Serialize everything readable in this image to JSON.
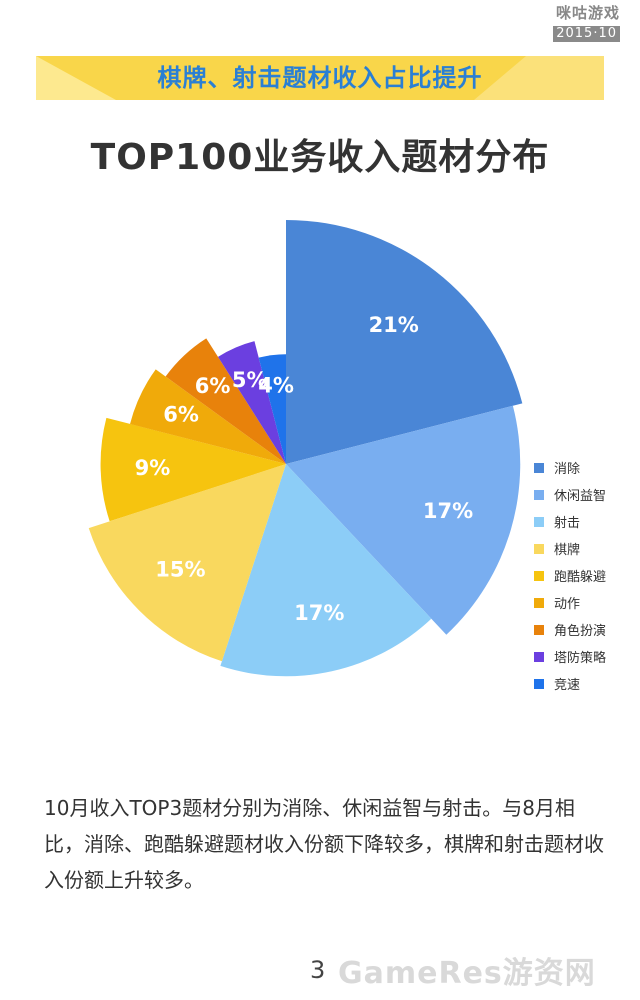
{
  "header": {
    "logo_brand": "咪咕游戏",
    "logo_date": "2015·10"
  },
  "banner": {
    "title": "棋牌、射击题材收入占比提升",
    "colors": {
      "main": "#f9d64a",
      "light": "#fde98f",
      "text": "#2a7fd4"
    }
  },
  "chart_data": {
    "type": "pie",
    "title": "TOP100业务收入题材分布",
    "start": "12 o'clock, clockwise",
    "style": "variable-radius (rose) pie",
    "slices": [
      {
        "label": "消除",
        "value": 21,
        "text": "21%",
        "color": "#4a86d6",
        "relative_radius": 1.0
      },
      {
        "label": "休闲益智",
        "value": 17,
        "text": "17%",
        "color": "#79aef0",
        "relative_radius": 0.96
      },
      {
        "label": "射击",
        "value": 17,
        "text": "17%",
        "color": "#8ccdf7",
        "relative_radius": 0.87
      },
      {
        "label": "棋牌",
        "value": 15,
        "text": "15%",
        "color": "#f9d85e",
        "relative_radius": 0.85
      },
      {
        "label": "跑酷躲避",
        "value": 9,
        "text": "9%",
        "color": "#f6c40f",
        "relative_radius": 0.76
      },
      {
        "label": "动作",
        "value": 6,
        "text": "6%",
        "color": "#f0aa0a",
        "relative_radius": 0.66
      },
      {
        "label": "角色扮演",
        "value": 6,
        "text": "6%",
        "color": "#e8820b",
        "relative_radius": 0.61
      },
      {
        "label": "塔防策略",
        "value": 5,
        "text": "5%",
        "color": "#6b3fe0",
        "relative_radius": 0.52
      },
      {
        "label": "竞速",
        "value": 4,
        "text": "4%",
        "color": "#1f73ea",
        "relative_radius": 0.45
      }
    ],
    "legend_position": "right",
    "label_color": "#ffffff"
  },
  "description": "10月收入TOP3题材分别为消除、休闲益智与射击。与8月相比，消除、跑酷躲避题材收入份额下降较多，棋牌和射击题材收入份额上升较多。",
  "footer": {
    "page_number": "3",
    "watermark": "GameRes游资网"
  }
}
